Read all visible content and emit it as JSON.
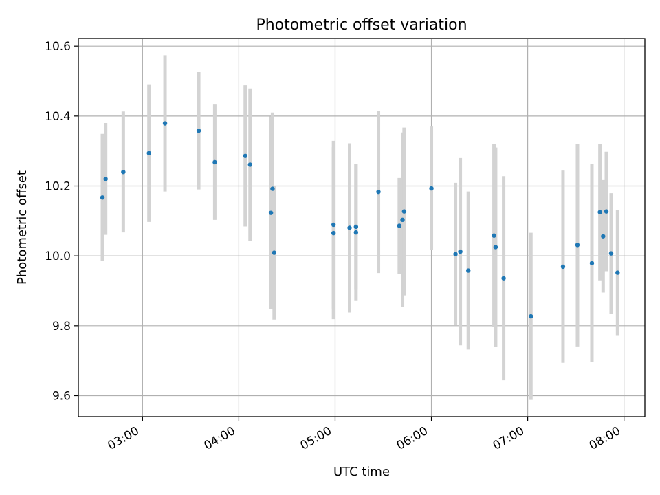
{
  "chart_data": {
    "type": "scatter",
    "title": "Photometric offset variation",
    "xlabel": "UTC time",
    "ylabel": "Photometric offset",
    "x_format": "time HH:MM",
    "xlim": [
      "02:20",
      "08:13"
    ],
    "ylim": [
      9.54,
      10.622
    ],
    "grid": true,
    "x_ticks": [
      "03:00",
      "04:00",
      "05:00",
      "06:00",
      "07:00",
      "08:00"
    ],
    "y_ticks": [
      "9.6",
      "9.8",
      "10.0",
      "10.2",
      "10.4",
      "10.6"
    ],
    "colors": {
      "marker": "#1f77b4",
      "errorbar": "#d3d3d3",
      "grid": "#b0b0b0"
    },
    "series": [
      {
        "points": [
          {
            "t": "02:35",
            "y": 10.167,
            "err": 0.182
          },
          {
            "t": "02:37",
            "y": 10.22,
            "err": 0.16
          },
          {
            "t": "02:48",
            "y": 10.24,
            "err": 0.173
          },
          {
            "t": "03:04",
            "y": 10.294,
            "err": 0.197
          },
          {
            "t": "03:14",
            "y": 10.379,
            "err": 0.195
          },
          {
            "t": "03:35",
            "y": 10.358,
            "err": 0.168
          },
          {
            "t": "03:45",
            "y": 10.268,
            "err": 0.165
          },
          {
            "t": "04:04",
            "y": 10.286,
            "err": 0.202
          },
          {
            "t": "04:07",
            "y": 10.261,
            "err": 0.218
          },
          {
            "t": "04:20",
            "y": 10.123,
            "err": 0.276
          },
          {
            "t": "04:21",
            "y": 10.192,
            "err": 0.218
          },
          {
            "t": "04:22",
            "y": 10.009,
            "err": 0.191
          },
          {
            "t": "04:59",
            "y": 10.065,
            "err": 0.246
          },
          {
            "t": "04:59",
            "y": 10.089,
            "err": 0.24
          },
          {
            "t": "05:09",
            "y": 10.08,
            "err": 0.242
          },
          {
            "t": "05:13",
            "y": 10.083,
            "err": 0.18
          },
          {
            "t": "05:13",
            "y": 10.067,
            "err": 0.196
          },
          {
            "t": "05:27",
            "y": 10.183,
            "err": 0.232
          },
          {
            "t": "05:40",
            "y": 10.086,
            "err": 0.137
          },
          {
            "t": "05:42",
            "y": 10.103,
            "err": 0.25
          },
          {
            "t": "05:43",
            "y": 10.127,
            "err": 0.24
          },
          {
            "t": "06:00",
            "y": 10.193,
            "err": 0.177
          },
          {
            "t": "06:15",
            "y": 10.005,
            "err": 0.204
          },
          {
            "t": "06:18",
            "y": 10.012,
            "err": 0.268
          },
          {
            "t": "06:23",
            "y": 9.958,
            "err": 0.226
          },
          {
            "t": "06:39",
            "y": 10.058,
            "err": 0.262
          },
          {
            "t": "06:40",
            "y": 10.025,
            "err": 0.285
          },
          {
            "t": "06:45",
            "y": 9.936,
            "err": 0.292
          },
          {
            "t": "07:02",
            "y": 9.827,
            "err": 0.239
          },
          {
            "t": "07:22",
            "y": 9.969,
            "err": 0.275
          },
          {
            "t": "07:31",
            "y": 10.031,
            "err": 0.29
          },
          {
            "t": "07:40",
            "y": 9.979,
            "err": 0.283
          },
          {
            "t": "07:45",
            "y": 10.125,
            "err": 0.195
          },
          {
            "t": "07:47",
            "y": 10.056,
            "err": 0.161
          },
          {
            "t": "07:49",
            "y": 10.127,
            "err": 0.171
          },
          {
            "t": "07:52",
            "y": 10.007,
            "err": 0.172
          },
          {
            "t": "07:56",
            "y": 9.952,
            "err": 0.179
          }
        ]
      }
    ]
  }
}
